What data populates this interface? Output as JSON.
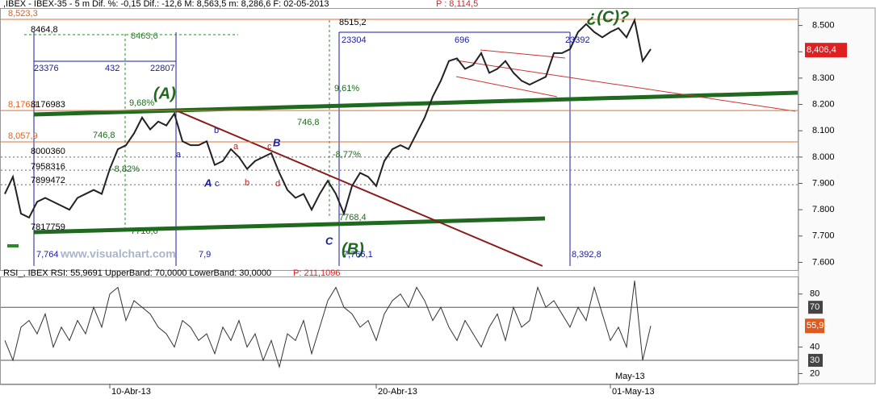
{
  "watermark": "www.visualchart.com",
  "chart_data": [
    {
      "type": "line",
      "title": ",IBEX - IBEX-35 -  5 m Dif. %: -0,15 Dif.: -12,6 M: 8,563,5 m: 8,286,6 F: 02-05-2013",
      "title_price": "P : 8,114,5",
      "color": "#222222",
      "values": [
        7860,
        7925,
        7785,
        7770,
        7830,
        7845,
        7830,
        7815,
        7800,
        7845,
        7860,
        7875,
        7860,
        7955,
        8030,
        8045,
        8090,
        8150,
        8105,
        8135,
        8120,
        8165,
        8060,
        8045,
        8045,
        8060,
        7970,
        7985,
        8030,
        8000,
        7955,
        7985,
        8000,
        8015,
        7940,
        7875,
        7845,
        7860,
        7800,
        7860,
        7910,
        7860,
        7785,
        7890,
        7940,
        7925,
        7890,
        7985,
        8030,
        8045,
        8030,
        8090,
        8150,
        8230,
        8290,
        8365,
        8375,
        8335,
        8350,
        8395,
        8320,
        8335,
        8365,
        8320,
        8290,
        8275,
        8290,
        8305,
        8395,
        8395,
        8410,
        8475,
        8505,
        8475,
        8455,
        8475,
        8490,
        8455,
        8520,
        8365,
        8410
      ],
      "ylim": [
        7580,
        8560
      ],
      "yticks": [
        {
          "value": 7600,
          "label": "7.600"
        },
        {
          "value": 7700,
          "label": "7.700"
        },
        {
          "value": 7800,
          "label": "7.800"
        },
        {
          "value": 7900,
          "label": "7.900"
        },
        {
          "value": 8000,
          "label": "8.000"
        },
        {
          "value": 8100,
          "label": "8.100"
        },
        {
          "value": 8200,
          "label": "8.200"
        },
        {
          "value": 8300,
          "label": "8.300"
        },
        {
          "value": 8400,
          "label": "8.400"
        },
        {
          "value": 8500,
          "label": "8.500"
        }
      ],
      "last_label": {
        "value": 8406.4,
        "label": "8,406,4"
      },
      "levels": [
        {
          "value": 8523.3,
          "label": "8,523,3"
        },
        {
          "value": 8176.9,
          "label": "8,176,9"
        },
        {
          "value": 8057.9,
          "label": "8,057,9"
        }
      ],
      "levels_dotted": [
        8000,
        7950,
        7895
      ],
      "annotations": [
        "8464,8",
        "8463,6",
        "23376",
        "432",
        "22807",
        "8515,2",
        "23304",
        "696",
        "23392",
        "¿(C)?",
        "(A)",
        "9,68%",
        "9,61%",
        "746,8",
        "746,8",
        "-8,82%",
        "-8,77%",
        "B",
        "b",
        "a",
        "a",
        "c",
        "A",
        "c",
        "b",
        "d",
        "C",
        "(B)",
        "7768,4",
        "7716,6",
        "7,764",
        "7,9",
        "8,392,8",
        "7,766,1",
        "8176983",
        "8000360",
        "7958316",
        "7899472",
        "7817759"
      ]
    },
    {
      "type": "line",
      "title": "RSI_, IBEX RSI: 55,9691 UpperBand: 70,0000 LowerBand: 30,0000",
      "title_price": "P: 211,1096",
      "color": "#333333",
      "values": [
        45,
        30,
        55,
        60,
        50,
        65,
        40,
        55,
        45,
        60,
        50,
        70,
        55,
        80,
        85,
        60,
        75,
        70,
        65,
        55,
        50,
        40,
        60,
        55,
        45,
        50,
        35,
        55,
        45,
        60,
        40,
        50,
        30,
        45,
        25,
        50,
        45,
        60,
        35,
        55,
        75,
        85,
        70,
        65,
        55,
        60,
        45,
        65,
        75,
        80,
        70,
        85,
        75,
        60,
        70,
        55,
        45,
        60,
        50,
        40,
        55,
        65,
        45,
        70,
        55,
        60,
        85,
        70,
        75,
        65,
        55,
        70,
        60,
        85,
        65,
        45,
        55,
        40,
        90,
        30,
        56
      ],
      "ylim": [
        13,
        92
      ],
      "yticks": [
        20,
        40,
        80
      ],
      "bands": [
        70,
        30
      ],
      "last_label": {
        "value": 55.97,
        "label": "55,97"
      },
      "categories": [
        null,
        null,
        null,
        null,
        null,
        null,
        null,
        null,
        null,
        null,
        null,
        null,
        null,
        "10-Abr-13",
        null,
        null,
        null,
        null,
        null,
        null,
        null,
        null,
        null,
        null,
        null,
        null,
        null,
        null,
        null,
        null,
        null,
        null,
        null,
        null,
        null,
        null,
        null,
        null,
        null,
        null,
        null,
        null,
        null,
        null,
        null,
        null,
        "20-Abr-13",
        null,
        null,
        null,
        null,
        null,
        null,
        null,
        null,
        null,
        null,
        null,
        null,
        null,
        null,
        null,
        null,
        null,
        null,
        null,
        null,
        null,
        null,
        null,
        null,
        null,
        null,
        null,
        null,
        "01-May-13",
        null,
        null,
        null,
        null,
        null
      ],
      "period_label": "May-13"
    }
  ]
}
